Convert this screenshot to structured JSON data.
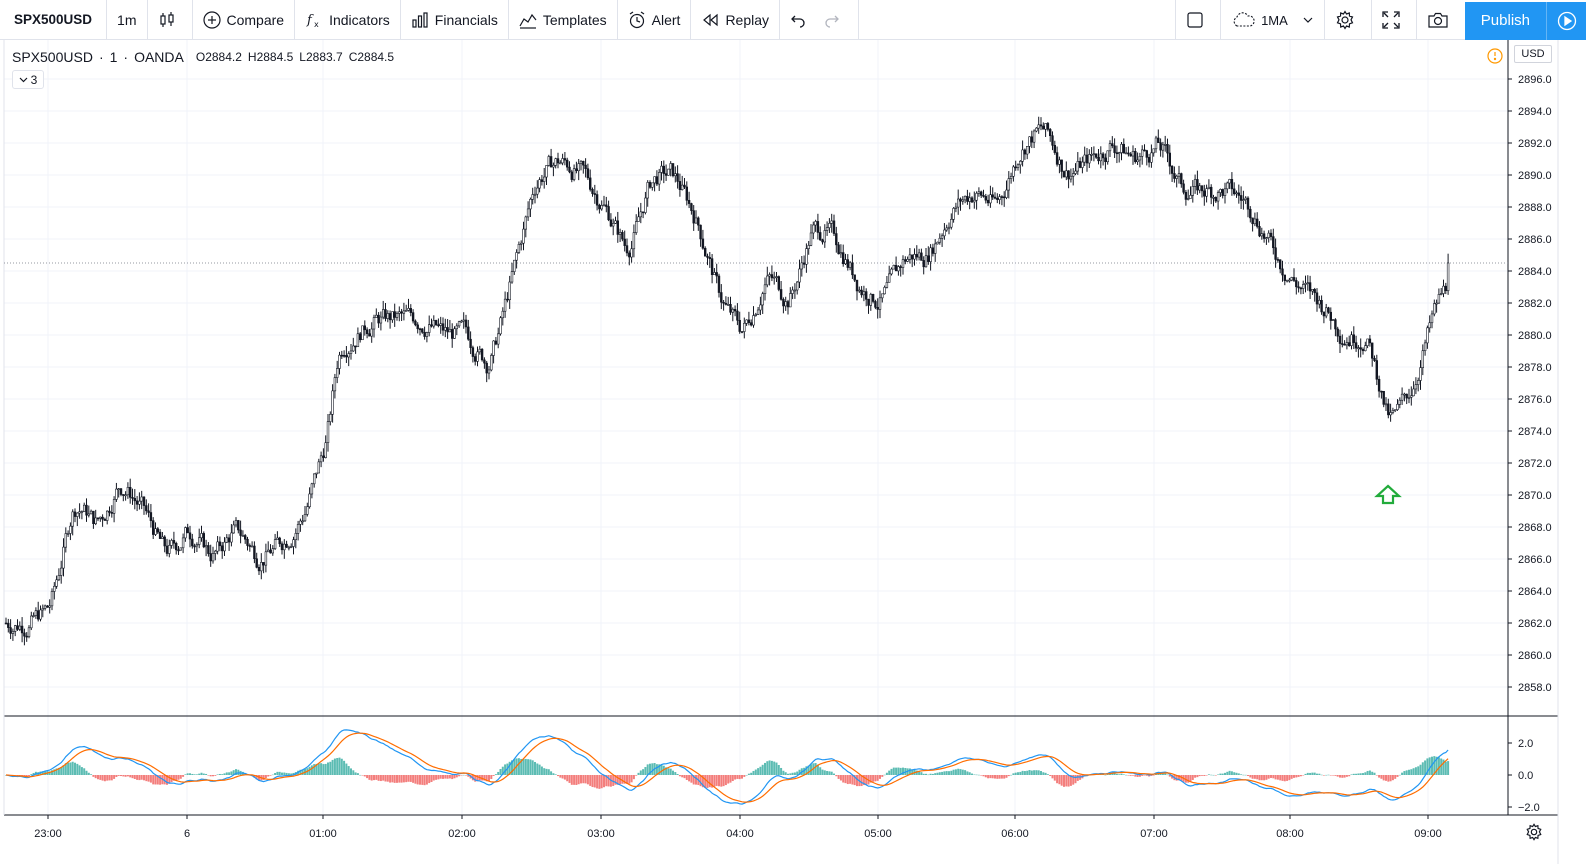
{
  "toolbar": {
    "symbol": "SPX500USD",
    "interval": "1m",
    "compare": "Compare",
    "indicators": "Indicators",
    "financials": "Financials",
    "templates": "Templates",
    "alert": "Alert",
    "replay": "Replay",
    "indicator_template": "1MA",
    "publish": "Publish"
  },
  "legend": {
    "symbol": "SPX500USD",
    "interval": "1",
    "exchange": "OANDA",
    "open": "O2884.2",
    "high": "H2884.5",
    "low": "L2883.7",
    "close": "C2884.5",
    "collapsed_count": "3"
  },
  "price_axis": {
    "currency": "USD",
    "ticks": [
      "2896.0",
      "2894.0",
      "2892.0",
      "2890.0",
      "2888.0",
      "2886.0",
      "2884.0",
      "2882.0",
      "2880.0",
      "2878.0",
      "2876.0",
      "2874.0",
      "2872.0",
      "2870.0",
      "2868.0",
      "2866.0",
      "2864.0",
      "2862.0",
      "2860.0",
      "2858.0"
    ]
  },
  "osc_axis": {
    "ticks": [
      "2.0",
      "0.0",
      "−2.0"
    ]
  },
  "time_axis": {
    "labels": [
      "23:00",
      "6",
      "01:00",
      "02:00",
      "03:00",
      "04:00",
      "05:00",
      "06:00",
      "07:00",
      "08:00",
      "09:00"
    ]
  },
  "colors": {
    "candle": "#131722",
    "macd_line": "#2196f3",
    "signal_line": "#ff6d00",
    "hist_pos": "#26a69a",
    "hist_neg": "#ef5350",
    "arrow": "#22ab3b"
  },
  "chart_data": {
    "type": "line",
    "series": [
      {
        "x": [
          "22:50",
          "23:00",
          "23:10",
          "23:20",
          "23:30",
          "23:40",
          "23:50",
          "00:00",
          "00:10",
          "00:20",
          "00:30",
          "00:40",
          "00:50",
          "01:00",
          "01:05",
          "01:10",
          "01:20",
          "01:30",
          "01:40",
          "01:50",
          "02:00",
          "02:10",
          "02:20",
          "02:30",
          "02:40",
          "02:50",
          "03:00",
          "03:10",
          "03:20",
          "03:30",
          "03:40",
          "03:50",
          "04:00",
          "04:10",
          "04:20",
          "04:30",
          "04:40",
          "04:50",
          "05:00",
          "05:10",
          "05:20",
          "05:30",
          "05:40",
          "05:50",
          "06:00",
          "06:10",
          "06:20",
          "06:30",
          "06:40",
          "06:50",
          "07:00",
          "07:10",
          "07:20",
          "07:30",
          "07:40",
          "07:50",
          "08:00",
          "08:10",
          "08:20",
          "08:30",
          "08:40",
          "08:50",
          "09:00",
          "09:10"
        ],
        "y": [
          2862,
          2863,
          2870,
          2868,
          2871,
          2869,
          2866,
          2868,
          2866,
          2868,
          2866,
          2867,
          2869,
          2874,
          2880,
          2880,
          2881,
          2881,
          2881,
          2880,
          2880,
          2878,
          2884,
          2890,
          2891,
          2890,
          2888,
          2885,
          2890,
          2890,
          2887,
          2882,
          2880,
          2884,
          2882,
          2887,
          2886,
          2883,
          2882,
          2885,
          2885,
          2888,
          2889,
          2888,
          2892,
          2893,
          2890,
          2891,
          2892,
          2891,
          2892,
          2889,
          2889,
          2889,
          2888,
          2885,
          2883,
          2882,
          2880,
          2880,
          2874,
          2877,
          2882,
          2884.5
        ]
      }
    ],
    "ylim": [
      2857,
      2897
    ]
  }
}
